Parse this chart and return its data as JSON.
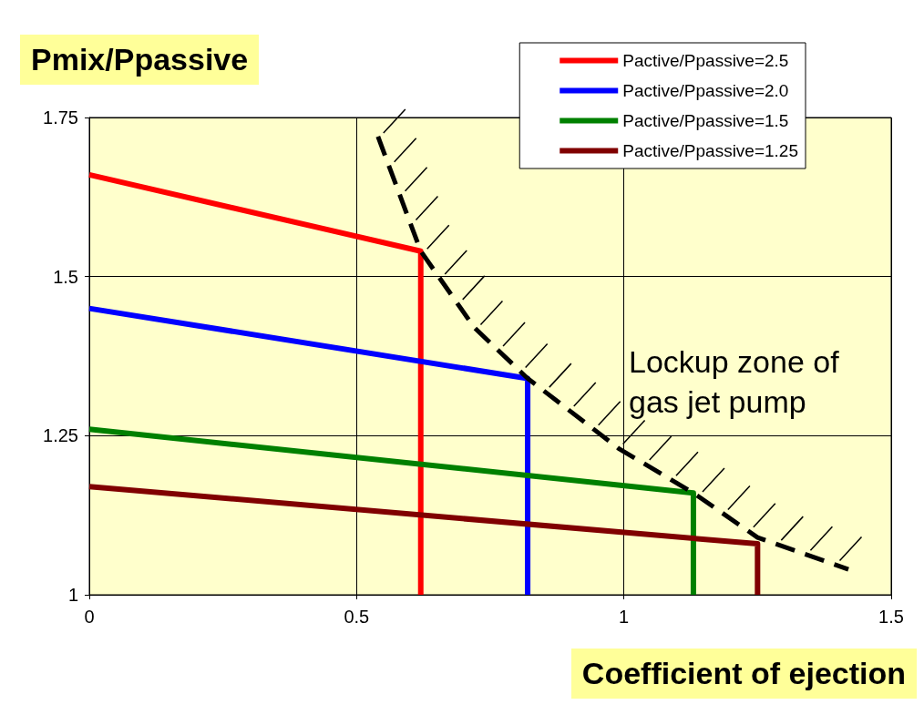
{
  "chart_data": {
    "type": "line",
    "xlabel": "Coefficient of ejection",
    "ylabel": "Pmix/Ppassive",
    "xlim": [
      0,
      1.5
    ],
    "xticks": [
      0,
      0.5,
      1,
      1.5
    ],
    "ylim": [
      1,
      1.75
    ],
    "yticks": [
      1,
      1.25,
      1.5,
      1.75
    ],
    "grid": true,
    "legend": "top right",
    "marker": "none",
    "annotations": [
      "Lockup zone of\ngas jet pump"
    ],
    "series": [
      {
        "name": "Pactive/Ppassive=2.5",
        "color": "#ff0000",
        "x": [
          0,
          0.62,
          0.62
        ],
        "values": [
          1.66,
          1.54,
          1
        ]
      },
      {
        "name": "Pactive/Ppassive=2.0",
        "color": "#0000ff",
        "x": [
          0,
          0.82,
          0.82
        ],
        "values": [
          1.45,
          1.34,
          1
        ]
      },
      {
        "name": "Pactive/Ppassive=1.5",
        "color": "#008000",
        "x": [
          0,
          1.13,
          1.13
        ],
        "values": [
          1.26,
          1.16,
          1
        ]
      },
      {
        "name": "Pactive/Ppassive=1.25",
        "color": "#800000",
        "x": [
          0,
          1.25,
          1.25
        ],
        "values": [
          1.17,
          1.08,
          1
        ]
      },
      {
        "color": "#000000",
        "line_style": "dashed",
        "x": [
          0.54,
          0.58,
          0.62,
          0.72,
          0.82,
          0.99,
          1.13,
          1.25,
          1.42
        ],
        "values": [
          1.72,
          1.63,
          1.54,
          1.42,
          1.34,
          1.23,
          1.16,
          1.09,
          1.04
        ]
      }
    ]
  }
}
